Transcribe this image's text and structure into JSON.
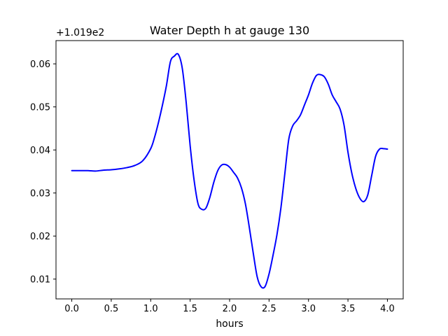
{
  "chart_data": {
    "type": "line",
    "title": "Water Depth h at gauge 130",
    "xlabel": "hours",
    "ylabel": "",
    "offset_label": "+1.019e2",
    "xlim": [
      -0.2,
      4.2
    ],
    "ylim": [
      0.0054,
      0.0654
    ],
    "x_ticks": [
      0.0,
      0.5,
      1.0,
      1.5,
      2.0,
      2.5,
      3.0,
      3.5,
      4.0
    ],
    "x_tick_labels": [
      "0.0",
      "0.5",
      "1.0",
      "1.5",
      "2.0",
      "2.5",
      "3.0",
      "3.5",
      "4.0"
    ],
    "y_ticks": [
      0.01,
      0.02,
      0.03,
      0.04,
      0.05,
      0.06
    ],
    "y_tick_labels": [
      "0.01",
      "0.02",
      "0.03",
      "0.04",
      "0.05",
      "0.06"
    ],
    "grid": false,
    "series": [
      {
        "color": "#0000ff",
        "x": [
          0.0,
          0.1,
          0.2,
          0.3,
          0.4,
          0.5,
          0.6,
          0.7,
          0.8,
          0.9,
          1.0,
          1.05,
          1.1,
          1.15,
          1.2,
          1.25,
          1.3,
          1.35,
          1.4,
          1.45,
          1.5,
          1.55,
          1.6,
          1.65,
          1.7,
          1.75,
          1.8,
          1.85,
          1.9,
          1.95,
          2.0,
          2.05,
          2.1,
          2.15,
          2.2,
          2.25,
          2.3,
          2.35,
          2.4,
          2.45,
          2.5,
          2.55,
          2.6,
          2.65,
          2.7,
          2.75,
          2.8,
          2.85,
          2.9,
          2.95,
          3.0,
          3.05,
          3.1,
          3.15,
          3.2,
          3.25,
          3.3,
          3.35,
          3.4,
          3.45,
          3.5,
          3.55,
          3.6,
          3.65,
          3.7,
          3.75,
          3.8,
          3.85,
          3.9,
          3.95,
          4.0
        ],
        "y": [
          0.0352,
          0.0352,
          0.0352,
          0.0351,
          0.0353,
          0.0354,
          0.0356,
          0.0359,
          0.0364,
          0.0375,
          0.0403,
          0.043,
          0.0465,
          0.0505,
          0.055,
          0.0605,
          0.0618,
          0.0622,
          0.059,
          0.051,
          0.041,
          0.033,
          0.0275,
          0.0262,
          0.0265,
          0.029,
          0.0325,
          0.0352,
          0.0365,
          0.0366,
          0.036,
          0.0348,
          0.0335,
          0.0312,
          0.0275,
          0.022,
          0.016,
          0.0105,
          0.0082,
          0.0083,
          0.0112,
          0.0155,
          0.0203,
          0.0265,
          0.0345,
          0.0425,
          0.0456,
          0.0468,
          0.0482,
          0.0505,
          0.0528,
          0.0555,
          0.0573,
          0.0575,
          0.057,
          0.0553,
          0.0528,
          0.0512,
          0.0495,
          0.0458,
          0.0395,
          0.0345,
          0.031,
          0.0288,
          0.028,
          0.0295,
          0.034,
          0.0385,
          0.0402,
          0.0403,
          0.0402
        ]
      }
    ]
  }
}
